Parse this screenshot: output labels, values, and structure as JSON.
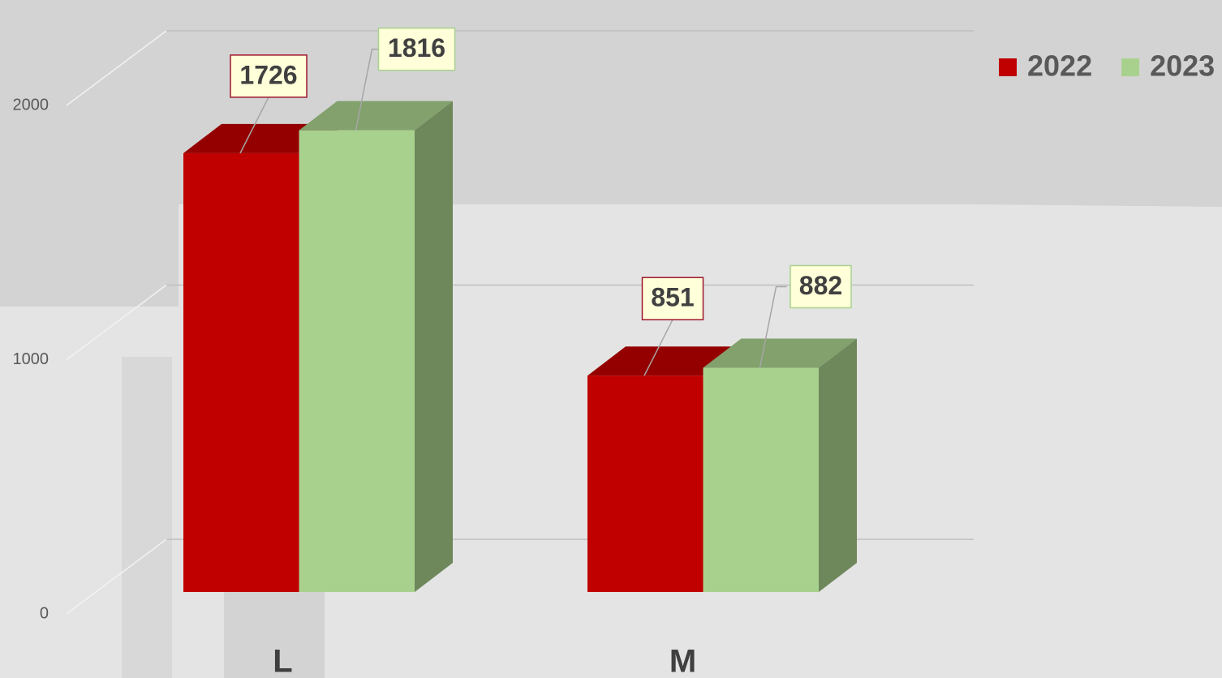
{
  "chart_data": {
    "type": "bar3d",
    "categories": [
      "L",
      "M"
    ],
    "series": [
      {
        "name": "2022",
        "color": "#c00000",
        "values": [
          1726,
          851
        ]
      },
      {
        "name": "2023",
        "color": "#a9d18e",
        "values": [
          1816,
          882
        ]
      }
    ],
    "ylim": [
      0,
      2000
    ],
    "yticks": [
      0,
      1000,
      2000
    ],
    "grid": true,
    "legend": "top-right"
  }
}
